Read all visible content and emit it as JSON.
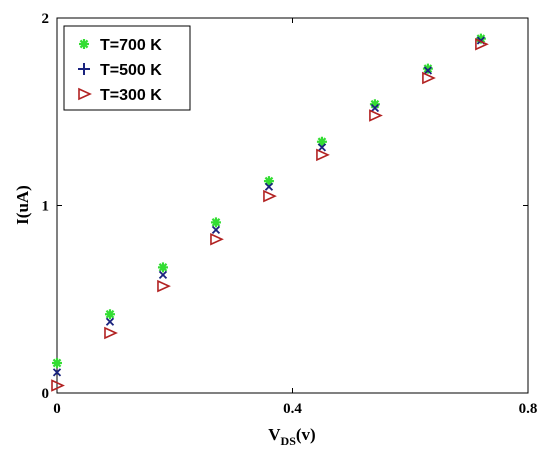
{
  "chart_data": {
    "type": "scatter",
    "title": "",
    "xlabel": {
      "main": "V",
      "sub": "DS",
      "tail": "(v)"
    },
    "ylabel": "I(uA)",
    "xlim": [
      0,
      0.8
    ],
    "ylim": [
      0,
      2
    ],
    "x_ticks": [
      0,
      0.4,
      0.8
    ],
    "x_tick_labels": [
      "0",
      "0.4",
      "0.8"
    ],
    "y_ticks": [
      0,
      1,
      2
    ],
    "y_tick_labels": [
      "0",
      "1",
      "2"
    ],
    "grid": false,
    "legend_position": "top-left",
    "series": [
      {
        "name": "T=700 K",
        "marker": "asterisk",
        "color": "#33dd33",
        "x": [
          0,
          0.09,
          0.18,
          0.27,
          0.36,
          0.45,
          0.54,
          0.63,
          0.72
        ],
        "y": [
          0.16,
          0.42,
          0.67,
          0.91,
          1.13,
          1.34,
          1.54,
          1.73,
          1.89
        ]
      },
      {
        "name": "T=500 K",
        "marker": "cross",
        "color": "#1a237e",
        "x": [
          0,
          0.09,
          0.18,
          0.27,
          0.36,
          0.45,
          0.54,
          0.63,
          0.72
        ],
        "y": [
          0.11,
          0.38,
          0.63,
          0.87,
          1.1,
          1.31,
          1.52,
          1.72,
          1.88
        ]
      },
      {
        "name": "T=300 K",
        "marker": "triangle-right",
        "color": "#b22222",
        "x": [
          0,
          0.09,
          0.18,
          0.27,
          0.36,
          0.45,
          0.54,
          0.63,
          0.72
        ],
        "y": [
          0.04,
          0.32,
          0.57,
          0.82,
          1.05,
          1.27,
          1.48,
          1.68,
          1.86
        ]
      }
    ]
  }
}
